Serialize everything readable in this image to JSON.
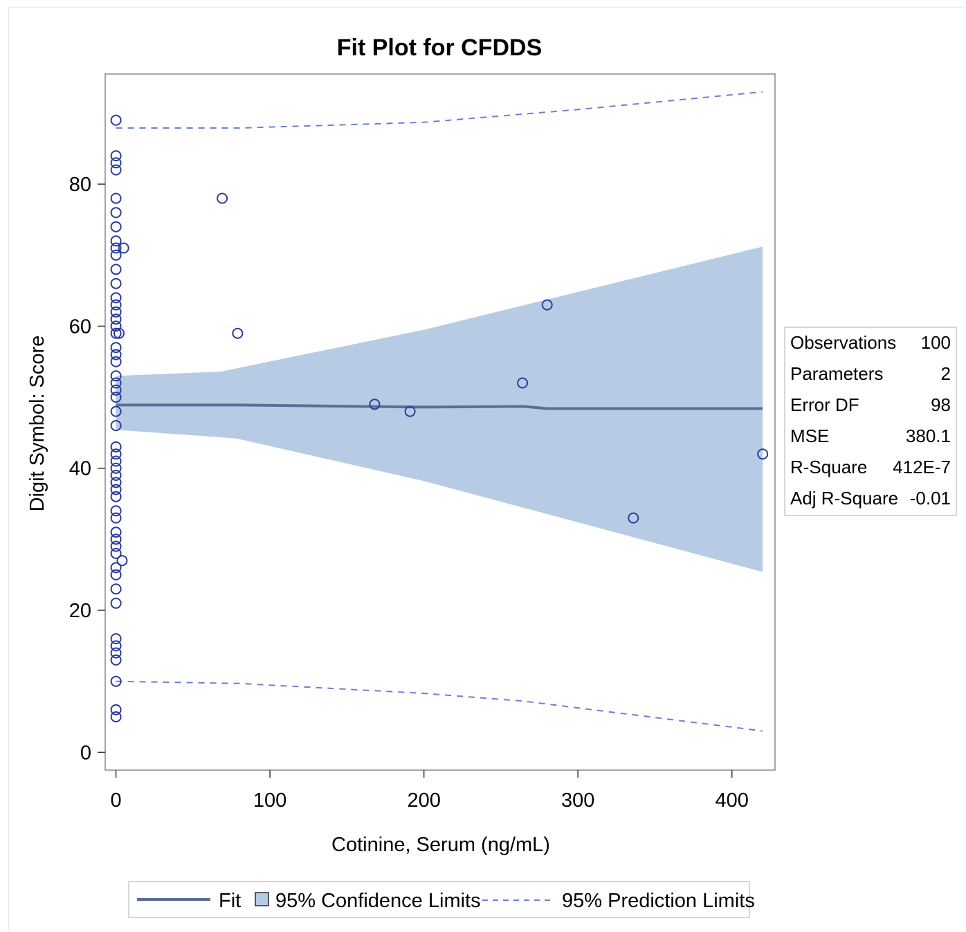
{
  "chart_data": {
    "type": "scatter",
    "title": "Fit Plot for CFDDS",
    "xlabel": "Cotinine, Serum (ng/mL)",
    "ylabel": "Digit Symbol: Score",
    "xlim": [
      -7,
      428
    ],
    "ylim": [
      -2.5,
      95.5
    ],
    "x_ticks": [
      0,
      100,
      200,
      300,
      400
    ],
    "y_ticks": [
      0,
      20,
      40,
      60,
      80
    ],
    "grid": false,
    "colors": {
      "marker": "#2b3a9c",
      "fit_line": "#5a6f96",
      "confidence_band": "#b8cbe4",
      "prediction_line": "#6b7fd1"
    },
    "series": [
      {
        "name": "Observations",
        "type": "scatter",
        "points": [
          [
            0,
            89
          ],
          [
            0,
            84
          ],
          [
            0,
            83
          ],
          [
            0,
            82
          ],
          [
            0,
            78
          ],
          [
            0,
            76
          ],
          [
            0,
            74
          ],
          [
            0,
            72
          ],
          [
            0,
            71
          ],
          [
            0,
            70
          ],
          [
            0,
            68
          ],
          [
            0,
            66
          ],
          [
            0,
            64
          ],
          [
            0,
            63
          ],
          [
            0,
            62
          ],
          [
            0,
            61
          ],
          [
            0,
            60
          ],
          [
            0,
            59
          ],
          [
            0,
            57
          ],
          [
            0,
            56
          ],
          [
            0,
            55
          ],
          [
            0,
            53
          ],
          [
            0,
            52
          ],
          [
            0,
            51
          ],
          [
            0,
            50
          ],
          [
            0,
            48
          ],
          [
            0,
            46
          ],
          [
            0,
            43
          ],
          [
            0,
            42
          ],
          [
            0,
            41
          ],
          [
            0,
            40
          ],
          [
            0,
            39
          ],
          [
            0,
            38
          ],
          [
            0,
            37
          ],
          [
            0,
            36
          ],
          [
            0,
            34
          ],
          [
            0,
            33
          ],
          [
            0,
            31
          ],
          [
            0,
            30
          ],
          [
            0,
            29
          ],
          [
            0,
            28
          ],
          [
            0,
            26
          ],
          [
            0,
            25
          ],
          [
            0,
            23
          ],
          [
            0,
            21
          ],
          [
            0,
            16
          ],
          [
            0,
            15
          ],
          [
            0,
            14
          ],
          [
            0,
            13
          ],
          [
            0,
            10
          ],
          [
            0,
            6
          ],
          [
            0,
            5
          ],
          [
            5,
            71
          ],
          [
            2,
            59
          ],
          [
            4,
            27
          ],
          [
            69,
            78
          ],
          [
            79,
            59
          ],
          [
            168,
            49
          ],
          [
            191,
            48
          ],
          [
            264,
            52
          ],
          [
            280,
            63
          ],
          [
            336,
            33
          ],
          [
            420,
            42
          ]
        ]
      },
      {
        "name": "Fit",
        "type": "line",
        "points": [
          [
            0,
            48.9
          ],
          [
            80,
            48.9
          ],
          [
            200,
            48.6
          ],
          [
            265,
            48.7
          ],
          [
            280,
            48.4
          ],
          [
            420,
            48.4
          ]
        ]
      },
      {
        "name": "95% Confidence Limits",
        "type": "band",
        "upper": [
          [
            0,
            53
          ],
          [
            68,
            53.6
          ],
          [
            200,
            59.5
          ],
          [
            420,
            71.2
          ]
        ],
        "lower": [
          [
            0,
            45.4
          ],
          [
            78,
            44.2
          ],
          [
            200,
            38.2
          ],
          [
            420,
            25.4
          ]
        ]
      },
      {
        "name": "95% Prediction Limits",
        "type": "dashed",
        "upper": [
          [
            0,
            87.9
          ],
          [
            80,
            87.9
          ],
          [
            200,
            88.7
          ],
          [
            300,
            90.5
          ],
          [
            420,
            93
          ]
        ],
        "lower": [
          [
            0,
            10
          ],
          [
            80,
            9.7
          ],
          [
            200,
            8.3
          ],
          [
            265,
            7.2
          ],
          [
            420,
            3
          ]
        ]
      }
    ],
    "legend": {
      "position": "bottom",
      "fit_label": "Fit",
      "confidence_label": "95% Confidence Limits",
      "prediction_label": "95% Prediction Limits"
    },
    "stats_table": [
      {
        "label": "Observations",
        "value": "100"
      },
      {
        "label": "Parameters",
        "value": "2"
      },
      {
        "label": "Error DF",
        "value": "98"
      },
      {
        "label": "MSE",
        "value": "380.1"
      },
      {
        "label": "R-Square",
        "value": "412E-7"
      },
      {
        "label": "Adj R-Square",
        "value": "-0.01"
      }
    ]
  }
}
